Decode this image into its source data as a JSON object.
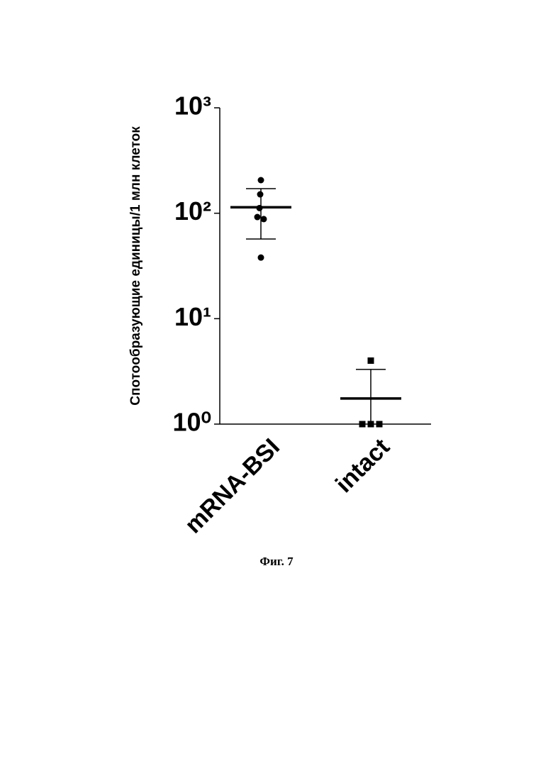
{
  "caption": "Фиг. 7",
  "chart_data": {
    "type": "dot",
    "y_label": "Спотообразующие единицы/1 млн клеток",
    "categories": [
      "mRNA-BSI",
      "intact"
    ],
    "groups": [
      {
        "marker": "circle",
        "values": [
          206,
          151,
          112,
          92,
          88,
          38
        ],
        "mean": 114,
        "sd": 57
      },
      {
        "marker": "square",
        "values": [
          4,
          1,
          1,
          1
        ],
        "mean": 1.75,
        "sd": 1.55
      }
    ],
    "log_scale": true,
    "ylim": [
      1,
      1000
    ],
    "yticks": [
      {
        "value": 1,
        "label": "10⁰"
      },
      {
        "value": 10,
        "label": "10¹"
      },
      {
        "value": 100,
        "label": "10²"
      },
      {
        "value": 1000,
        "label": "10³"
      }
    ],
    "color": "#000000"
  }
}
